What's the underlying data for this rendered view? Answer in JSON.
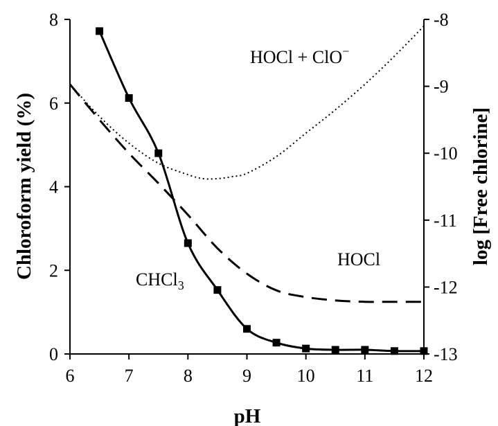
{
  "chart_data": {
    "type": "line",
    "xlabel": "pH",
    "ylabel_left": "Chloroform yield  (%)",
    "ylabel_right": "log [Free chlorine]",
    "xlim": [
      6,
      12
    ],
    "ylim_left": [
      0,
      8
    ],
    "ylim_right": [
      -13,
      -8
    ],
    "x_ticks": [
      "6",
      "7",
      "8",
      "9",
      "10",
      "11",
      "12"
    ],
    "y_ticks_left": [
      "0",
      "2",
      "4",
      "6",
      "8"
    ],
    "y_ticks_right": [
      "-13",
      "-12",
      "-11",
      "-10",
      "-9",
      "-8"
    ],
    "grid": false,
    "series": [
      {
        "axis": "left",
        "style": "solid-with-square-markers",
        "x": [
          6.5,
          7.0,
          7.5,
          8.0,
          8.5,
          9.0,
          9.5,
          10.0,
          10.5,
          11.0,
          11.5,
          12.0
        ],
        "y": [
          7.72,
          6.12,
          4.8,
          2.65,
          1.53,
          0.6,
          0.27,
          0.13,
          0.1,
          0.1,
          0.07,
          0.07
        ]
      },
      {
        "axis": "right",
        "style": "dashed",
        "x": [
          6.0,
          6.5,
          7.0,
          7.5,
          8.0,
          8.5,
          9.0,
          9.5,
          10.0,
          10.5,
          11.0,
          11.5,
          12.0
        ],
        "y": [
          -8.97,
          -9.5,
          -10.0,
          -10.45,
          -10.92,
          -11.42,
          -11.8,
          -12.05,
          -12.15,
          -12.2,
          -12.22,
          -12.22,
          -12.22
        ]
      },
      {
        "axis": "right",
        "style": "dotted",
        "x": [
          6.0,
          6.5,
          7.0,
          7.5,
          8.0,
          8.25,
          8.5,
          8.75,
          9.0,
          9.5,
          10.0,
          10.5,
          11.0,
          11.5,
          12.0
        ],
        "y": [
          -8.97,
          -9.45,
          -9.85,
          -10.15,
          -10.32,
          -10.38,
          -10.38,
          -10.35,
          -10.3,
          -10.05,
          -9.7,
          -9.35,
          -8.97,
          -8.55,
          -8.1
        ]
      }
    ],
    "annotations": {
      "chcl3_main": "CHCl",
      "chcl3_sub": "3",
      "hocl": "HOCl",
      "hocl_clo_main": "HOCl + ClO",
      "hocl_clo_sup": "−"
    }
  }
}
